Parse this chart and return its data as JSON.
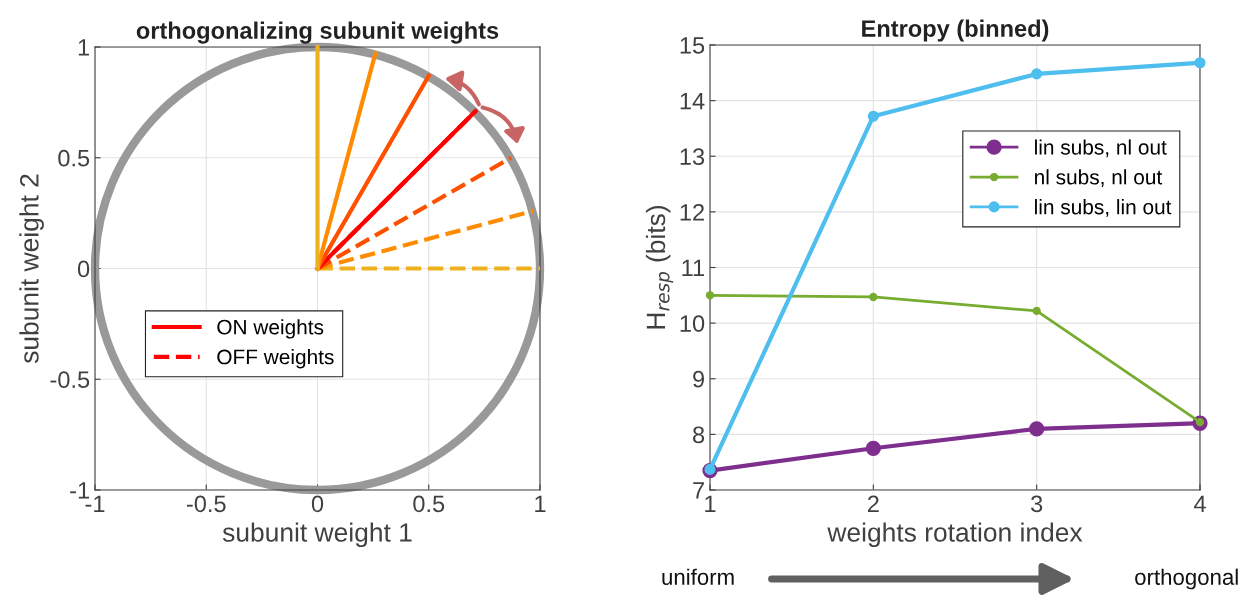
{
  "chart_data": [
    {
      "type": "line",
      "title": "orthogonalizing subunit weights",
      "xlabel": "subunit weight 1",
      "ylabel": "subunit weight 2",
      "xlim": [
        -1,
        1
      ],
      "ylim": [
        -1,
        1
      ],
      "xticks": [
        -1,
        -0.5,
        0,
        0.5,
        1
      ],
      "yticks": [
        -1,
        -0.5,
        0,
        0.5,
        1
      ],
      "grid": true,
      "legend": "left",
      "marker": "none",
      "series": [
        {
          "color": "#edb120",
          "line_style": "dashed",
          "x": [
            0,
            1
          ],
          "values": [
            0,
            0
          ]
        },
        {
          "color": "#ff8c00",
          "line_style": "dashed",
          "x": [
            0,
            0.97
          ],
          "values": [
            0,
            0.26
          ]
        },
        {
          "color": "#ff5000",
          "line_style": "dashed",
          "x": [
            0,
            0.87
          ],
          "values": [
            0,
            0.5
          ]
        },
        {
          "name": "OFF weights",
          "color": "#ff0000",
          "line_style": "dashed",
          "x": [
            0,
            0.71
          ],
          "values": [
            0,
            0.71
          ]
        },
        {
          "name": "ON weights",
          "color": "#ff0000",
          "line_style": "solid",
          "x": [
            0,
            0.71
          ],
          "values": [
            0,
            0.71
          ]
        },
        {
          "color": "#ff5000",
          "line_style": "solid",
          "x": [
            0,
            0.5
          ],
          "values": [
            0,
            0.87
          ]
        },
        {
          "color": "#ff8c00",
          "line_style": "solid",
          "x": [
            0,
            0.26
          ],
          "values": [
            0,
            0.97
          ]
        },
        {
          "color": "#edb120",
          "line_style": "solid",
          "x": [
            0,
            0
          ],
          "values": [
            0,
            1
          ]
        }
      ]
    },
    {
      "type": "line",
      "title": "Entropy (binned)",
      "xlabel": "weights rotation index",
      "ylabel": "H$_{resp}$ (bits)",
      "xlim": [
        1,
        4
      ],
      "ylim": [
        7,
        15
      ],
      "xticks": [
        1,
        2,
        3,
        4
      ],
      "yticks": [
        7,
        8,
        9,
        10,
        11,
        12,
        13,
        14,
        15
      ],
      "grid": true,
      "legend": "top right",
      "marker": "circle",
      "line_style": "solid",
      "x": [
        1,
        2,
        3,
        4
      ],
      "annotations": [
        "uniform",
        "orthogonal"
      ],
      "series": [
        {
          "name": "lin subs, nl out",
          "color": "#7e2f8e",
          "values": [
            7.35,
            7.75,
            8.1,
            8.2
          ]
        },
        {
          "name": "nl subs, nl out",
          "color": "#77ac30",
          "values": [
            10.5,
            10.47,
            10.22,
            8.22
          ]
        },
        {
          "name": "lin subs, lin out",
          "color": "#4dbeee",
          "values": [
            7.37,
            13.72,
            14.48,
            14.68
          ]
        }
      ]
    }
  ]
}
